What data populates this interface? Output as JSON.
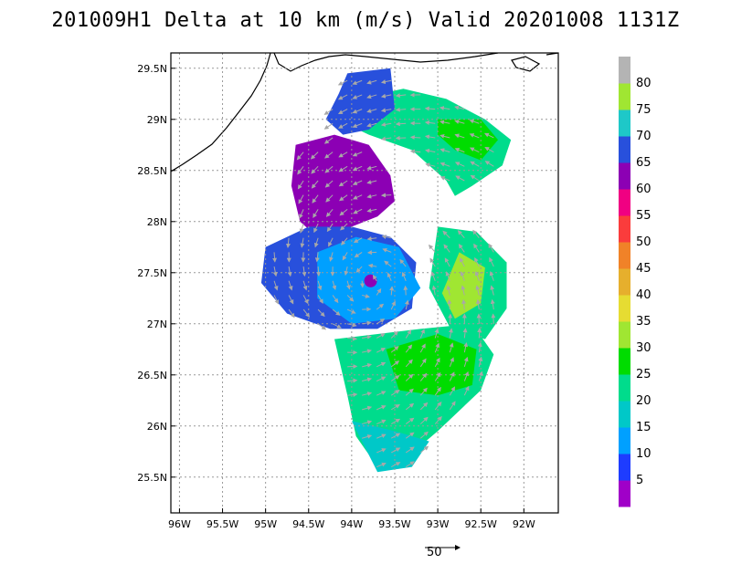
{
  "title": "201009H1 Delta at 10 km (m/s) Valid 20201008 1131Z",
  "scale_arrow_label": "50",
  "chart_data": {
    "type": "heatmap",
    "title": "201009H1 Delta at 10 km (m/s) Valid 20201008 1131Z",
    "xlim": [
      -96.1,
      -91.6
    ],
    "ylim": [
      25.15,
      29.65
    ],
    "x_ticks": [
      {
        "value": -96.0,
        "label": "96W"
      },
      {
        "value": -95.5,
        "label": "95.5W"
      },
      {
        "value": -95.0,
        "label": "95W"
      },
      {
        "value": -94.5,
        "label": "94.5W"
      },
      {
        "value": -94.0,
        "label": "94W"
      },
      {
        "value": -93.5,
        "label": "93.5W"
      },
      {
        "value": -93.0,
        "label": "93W"
      },
      {
        "value": -92.5,
        "label": "92.5W"
      },
      {
        "value": -92.0,
        "label": "92W"
      }
    ],
    "y_ticks": [
      {
        "value": 25.5,
        "label": "25.5N"
      },
      {
        "value": 26.0,
        "label": "26N"
      },
      {
        "value": 26.5,
        "label": "26.5N"
      },
      {
        "value": 27.0,
        "label": "27N"
      },
      {
        "value": 27.5,
        "label": "27.5N"
      },
      {
        "value": 28.0,
        "label": "28N"
      },
      {
        "value": 28.5,
        "label": "28.5N"
      },
      {
        "value": 29.0,
        "label": "29N"
      },
      {
        "value": 29.5,
        "label": "29.5N"
      }
    ],
    "grid": true,
    "colorbar": {
      "labels": [
        "5",
        "10",
        "15",
        "20",
        "25",
        "30",
        "35",
        "40",
        "45",
        "50",
        "55",
        "60",
        "65",
        "70",
        "75",
        "80"
      ],
      "colors": [
        "#a000c8",
        "#1e3cff",
        "#00a0ff",
        "#00c8c8",
        "#00dc8c",
        "#00dc00",
        "#a0e632",
        "#e6dc32",
        "#e6af2d",
        "#f08228",
        "#fa3c3c",
        "#f00082",
        "#8c00b4",
        "#2850dc",
        "#1ec8c8",
        "#a0e632",
        "#b4b4b4"
      ]
    },
    "storm_center": {
      "lon": -93.8,
      "lat": 27.4
    },
    "wind_regions": [
      {
        "name": "outer-north-band",
        "color_index": 4,
        "poly": [
          [
            -93.95,
            29.2
          ],
          [
            -93.4,
            29.3
          ],
          [
            -92.9,
            29.2
          ],
          [
            -92.45,
            29.0
          ],
          [
            -92.15,
            28.8
          ],
          [
            -92.25,
            28.55
          ],
          [
            -92.6,
            28.35
          ],
          [
            -92.8,
            28.25
          ],
          [
            -92.9,
            28.4
          ],
          [
            -93.3,
            28.7
          ],
          [
            -93.8,
            28.85
          ],
          [
            -94.05,
            28.95
          ]
        ]
      },
      {
        "name": "north-band-strong",
        "color_index": 5,
        "poly": [
          [
            -93.0,
            29.0
          ],
          [
            -92.5,
            29.0
          ],
          [
            -92.3,
            28.8
          ],
          [
            -92.5,
            28.6
          ],
          [
            -92.8,
            28.7
          ],
          [
            -93.0,
            28.85
          ]
        ]
      },
      {
        "name": "northwest-max-region",
        "color_index": 12,
        "poly": [
          [
            -94.65,
            28.75
          ],
          [
            -94.2,
            28.85
          ],
          [
            -93.8,
            28.75
          ],
          [
            -93.55,
            28.45
          ],
          [
            -93.5,
            28.2
          ],
          [
            -93.7,
            28.05
          ],
          [
            -94.0,
            27.95
          ],
          [
            -94.4,
            27.85
          ],
          [
            -94.6,
            28.0
          ],
          [
            -94.7,
            28.35
          ]
        ]
      },
      {
        "name": "northwest-shoulder",
        "color_index": 13,
        "poly": [
          [
            -94.05,
            29.45
          ],
          [
            -93.55,
            29.5
          ],
          [
            -93.5,
            29.1
          ],
          [
            -93.8,
            28.9
          ],
          [
            -94.1,
            28.85
          ],
          [
            -94.3,
            29.0
          ],
          [
            -94.15,
            29.25
          ]
        ]
      },
      {
        "name": "west-core",
        "color_index": 13,
        "poly": [
          [
            -95.0,
            27.75
          ],
          [
            -94.5,
            27.95
          ],
          [
            -94.0,
            27.95
          ],
          [
            -93.55,
            27.85
          ],
          [
            -93.25,
            27.6
          ],
          [
            -93.3,
            27.15
          ],
          [
            -93.7,
            26.95
          ],
          [
            -94.25,
            26.95
          ],
          [
            -94.75,
            27.1
          ],
          [
            -95.05,
            27.4
          ]
        ]
      },
      {
        "name": "inner-core",
        "color_index": 2,
        "poly": [
          [
            -94.4,
            27.7
          ],
          [
            -93.95,
            27.85
          ],
          [
            -93.45,
            27.75
          ],
          [
            -93.2,
            27.35
          ],
          [
            -93.5,
            27.05
          ],
          [
            -94.0,
            27.0
          ],
          [
            -94.4,
            27.25
          ]
        ]
      },
      {
        "name": "south-sector",
        "color_index": 4,
        "poly": [
          [
            -94.2,
            26.85
          ],
          [
            -93.2,
            26.95
          ],
          [
            -92.6,
            27.0
          ],
          [
            -92.35,
            26.7
          ],
          [
            -92.5,
            26.35
          ],
          [
            -93.0,
            25.95
          ],
          [
            -93.35,
            25.7
          ],
          [
            -93.7,
            25.6
          ],
          [
            -93.95,
            25.9
          ],
          [
            -94.05,
            26.3
          ]
        ]
      },
      {
        "name": "southeast-strong",
        "color_index": 5,
        "poly": [
          [
            -93.6,
            26.75
          ],
          [
            -93.0,
            26.9
          ],
          [
            -92.55,
            26.75
          ],
          [
            -92.6,
            26.4
          ],
          [
            -93.0,
            26.3
          ],
          [
            -93.45,
            26.35
          ]
        ]
      },
      {
        "name": "east-sector",
        "color_index": 4,
        "poly": [
          [
            -93.0,
            27.95
          ],
          [
            -92.55,
            27.9
          ],
          [
            -92.2,
            27.6
          ],
          [
            -92.2,
            27.15
          ],
          [
            -92.45,
            26.85
          ],
          [
            -92.85,
            26.95
          ],
          [
            -93.1,
            27.35
          ]
        ]
      },
      {
        "name": "east-light-green",
        "color_index": 6,
        "poly": [
          [
            -92.75,
            27.7
          ],
          [
            -92.45,
            27.55
          ],
          [
            -92.5,
            27.2
          ],
          [
            -92.8,
            27.05
          ],
          [
            -92.95,
            27.3
          ]
        ]
      },
      {
        "name": "south-tail",
        "color_index": 3,
        "poly": [
          [
            -94.0,
            26.05
          ],
          [
            -93.5,
            25.95
          ],
          [
            -93.1,
            25.85
          ],
          [
            -93.3,
            25.6
          ],
          [
            -93.7,
            25.55
          ]
        ]
      }
    ],
    "eye": {
      "lon": -93.78,
      "lat": 27.42,
      "color_index": 12
    }
  }
}
